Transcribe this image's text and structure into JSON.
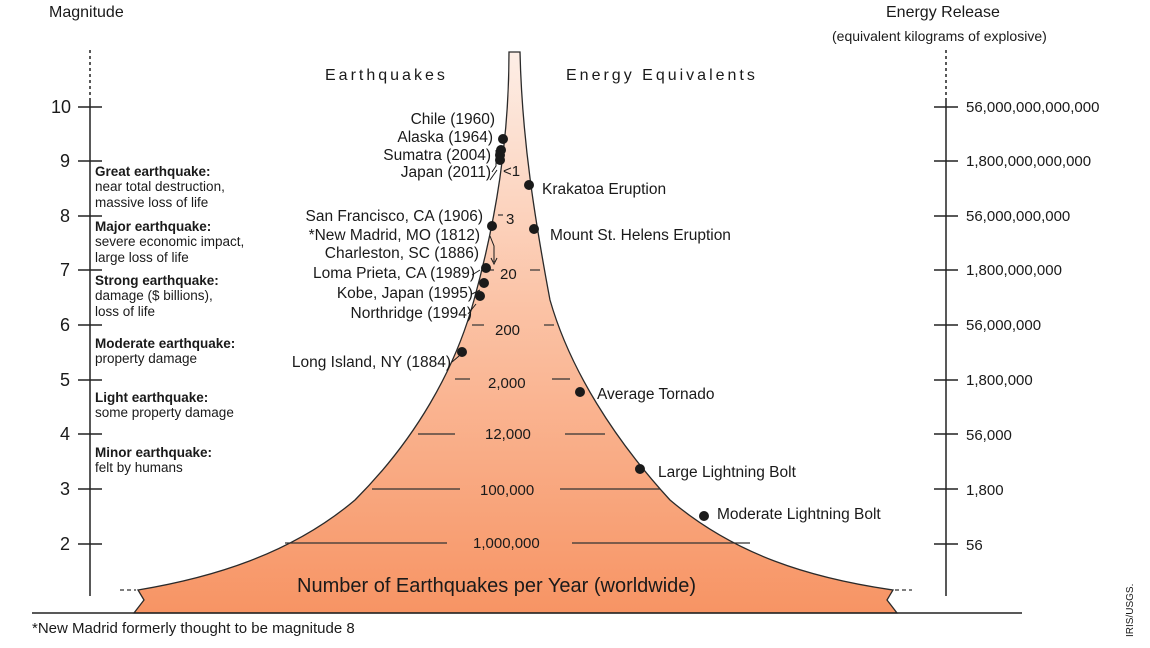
{
  "left_axis_title": "Magnitude",
  "right_axis_title": "Energy Release",
  "right_axis_subtitle": "(equivalent kilograms of explosive)",
  "earthquakes_heading": "Earthquakes",
  "energy_heading": "Energy Equivalents",
  "magnitude_ticks": [
    "10",
    "9",
    "8",
    "7",
    "6",
    "5",
    "4",
    "3",
    "2"
  ],
  "energy_ticks": [
    "56,000,000,000,000",
    "1,800,000,000,000",
    "56,000,000,000",
    "1,800,000,000",
    "56,000,000",
    "1,800,000",
    "56,000",
    "1,800",
    "56"
  ],
  "categories": [
    {
      "title": "Great earthquake:",
      "desc": [
        "near total destruction,",
        "massive loss of life"
      ]
    },
    {
      "title": "Major earthquake:",
      "desc": [
        "severe economic impact,",
        "large loss of life"
      ]
    },
    {
      "title": "Strong earthquake:",
      "desc": [
        "damage ($ billions),",
        "loss of life"
      ]
    },
    {
      "title": "Moderate earthquake:",
      "desc": [
        "property damage"
      ]
    },
    {
      "title": "Light earthquake:",
      "desc": [
        "some property damage"
      ]
    },
    {
      "title": "Minor earthquake:",
      "desc": [
        "felt by humans"
      ]
    }
  ],
  "earthquakes": [
    {
      "label": "Chile (1960)",
      "magnitude": 9.5
    },
    {
      "label": "Alaska (1964)",
      "magnitude": 9.2
    },
    {
      "label": "Sumatra (2004)",
      "magnitude": 9.1
    },
    {
      "label": "Japan (2011)",
      "magnitude": 9.0
    },
    {
      "label": "San Francisco, CA (1906)",
      "magnitude": 7.8
    },
    {
      "label": "*New Madrid, MO (1812)",
      "magnitude": 7.7
    },
    {
      "label": "Charleston, SC (1886)",
      "magnitude": 7.3
    },
    {
      "label": "Loma Prieta, CA (1989)",
      "magnitude": 6.9
    },
    {
      "label": "Kobe, Japan (1995)",
      "magnitude": 6.9
    },
    {
      "label": "Northridge (1994)",
      "magnitude": 6.7
    },
    {
      "label": "Long Island, NY (1884)",
      "magnitude": 5.2
    }
  ],
  "energy_equivalents": [
    {
      "label": "Krakatoa Eruption"
    },
    {
      "label": "Mount St. Helens Eruption"
    },
    {
      "label": "Average Tornado"
    },
    {
      "label": "Large Lightning Bolt"
    },
    {
      "label": "Moderate Lightning Bolt"
    }
  ],
  "counts_per_year": [
    "<1",
    "3",
    "20",
    "200",
    "2,000",
    "12,000",
    "100,000",
    "1,000,000"
  ],
  "bottom_label": "Number of Earthquakes per Year (worldwide)",
  "footnote": "*New Madrid formerly thought to be magnitude 8",
  "credit": "IRIS/USGS.",
  "colors": {
    "fill_top": "#fde3d4",
    "fill_bottom": "#f79b72",
    "ink": "#1a1a1a"
  }
}
